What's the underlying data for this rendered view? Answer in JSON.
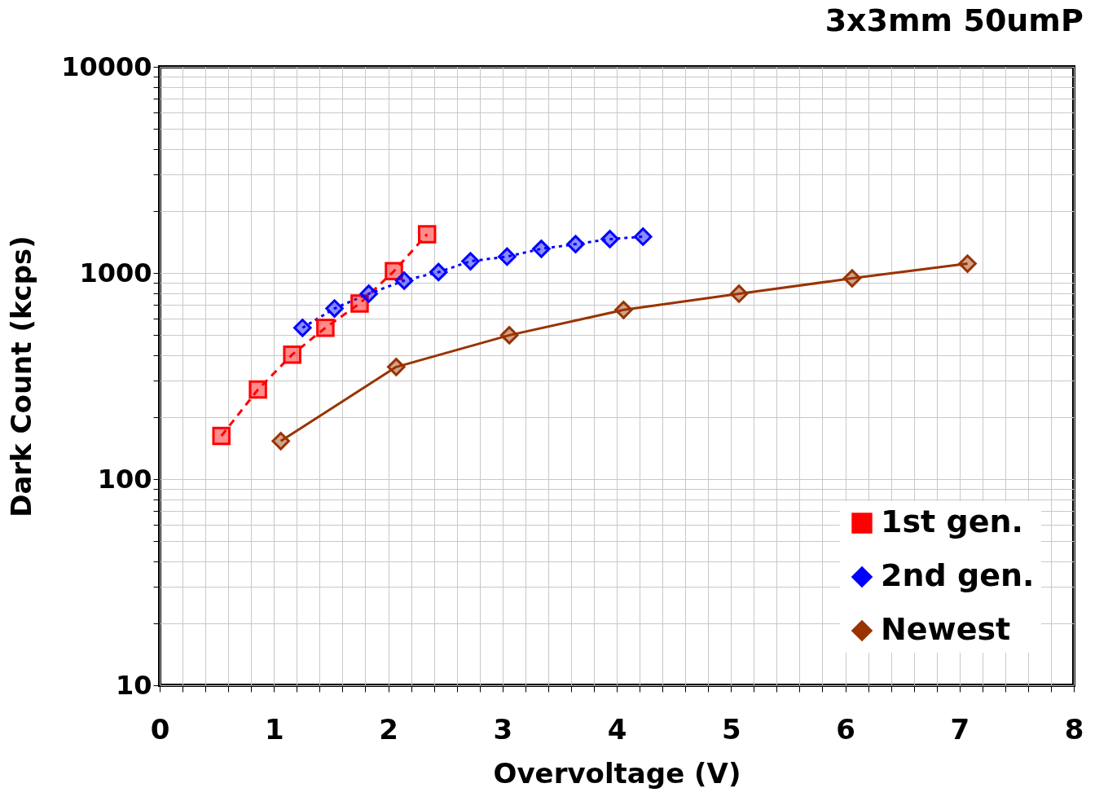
{
  "chart_data": {
    "type": "line",
    "title": "3x3mm 50umP",
    "xlabel": "Overvoltage (V)",
    "ylabel": "Dark Count (kcps)",
    "log": "y",
    "grid": true,
    "legend": "bottom right",
    "xlim": [
      0,
      8
    ],
    "ylim": [
      10,
      10000
    ],
    "xticks": [
      0,
      {
        "value": 0.2,
        "label": null
      },
      {
        "value": 0.4,
        "label": null
      },
      {
        "value": 0.6,
        "label": null
      },
      {
        "value": 0.8,
        "label": null
      },
      1,
      {
        "value": 1.2,
        "label": null
      },
      {
        "value": 1.4,
        "label": null
      },
      {
        "value": 1.6,
        "label": null
      },
      {
        "value": 1.8,
        "label": null
      },
      2,
      {
        "value": 2.2,
        "label": null
      },
      {
        "value": 2.4,
        "label": null
      },
      {
        "value": 2.6,
        "label": null
      },
      {
        "value": 2.8,
        "label": null
      },
      3,
      {
        "value": 3.2,
        "label": null
      },
      {
        "value": 3.4,
        "label": null
      },
      {
        "value": 3.6,
        "label": null
      },
      {
        "value": 3.8,
        "label": null
      },
      4,
      {
        "value": 4.2,
        "label": null
      },
      {
        "value": 4.4,
        "label": null
      },
      {
        "value": 4.6,
        "label": null
      },
      {
        "value": 4.8,
        "label": null
      },
      5,
      {
        "value": 5.2,
        "label": null
      },
      {
        "value": 5.4,
        "label": null
      },
      {
        "value": 5.6,
        "label": null
      },
      {
        "value": 5.8,
        "label": null
      },
      6,
      {
        "value": 6.2,
        "label": null
      },
      {
        "value": 6.4,
        "label": null
      },
      {
        "value": 6.6,
        "label": null
      },
      {
        "value": 6.8,
        "label": null
      },
      7,
      {
        "value": 7.2,
        "label": null
      },
      {
        "value": 7.4,
        "label": null
      },
      {
        "value": 7.6,
        "label": null
      },
      {
        "value": 7.8,
        "label": null
      },
      8
    ],
    "yticks": [
      10,
      {
        "value": 20,
        "label": null
      },
      {
        "value": 30,
        "label": null
      },
      {
        "value": 40,
        "label": null
      },
      {
        "value": 50,
        "label": null
      },
      {
        "value": 60,
        "label": null
      },
      {
        "value": 70,
        "label": null
      },
      {
        "value": 80,
        "label": null
      },
      {
        "value": 90,
        "label": null
      },
      100,
      {
        "value": 200,
        "label": null
      },
      {
        "value": 300,
        "label": null
      },
      {
        "value": 400,
        "label": null
      },
      {
        "value": 500,
        "label": null
      },
      {
        "value": 600,
        "label": null
      },
      {
        "value": 700,
        "label": null
      },
      {
        "value": 800,
        "label": null
      },
      {
        "value": 900,
        "label": null
      },
      1000,
      {
        "value": 2000,
        "label": null
      },
      {
        "value": 3000,
        "label": null
      },
      {
        "value": 4000,
        "label": null
      },
      {
        "value": 5000,
        "label": null
      },
      {
        "value": 6000,
        "label": null
      },
      {
        "value": 7000,
        "label": null
      },
      {
        "value": 8000,
        "label": null
      },
      {
        "value": 9000,
        "label": null
      },
      10000
    ],
    "series": [
      {
        "name": "1st gen.",
        "color": "#ff0000",
        "marker": "square",
        "line_style": "dashed",
        "x": [
          0.54,
          0.86,
          1.16,
          1.45,
          1.75,
          2.05,
          2.34
        ],
        "values": [
          162,
          272,
          402,
          542,
          711,
          1020,
          1540
        ]
      },
      {
        "name": "2nd gen.",
        "color": "#0000ff",
        "marker": "diamond",
        "line_style": "dotted",
        "x": [
          1.25,
          1.53,
          1.83,
          2.14,
          2.44,
          2.72,
          3.04,
          3.34,
          3.64,
          3.94,
          4.23
        ],
        "values": [
          542,
          673,
          793,
          918,
          1010,
          1140,
          1200,
          1310,
          1380,
          1460,
          1500
        ]
      },
      {
        "name": "Newest",
        "color": "#993300",
        "marker": "diamond",
        "line_style": "solid",
        "x": [
          1.06,
          2.07,
          3.06,
          4.06,
          5.07,
          6.06,
          7.07
        ],
        "values": [
          153,
          350,
          499,
          662,
          793,
          942,
          1110
        ]
      }
    ]
  }
}
